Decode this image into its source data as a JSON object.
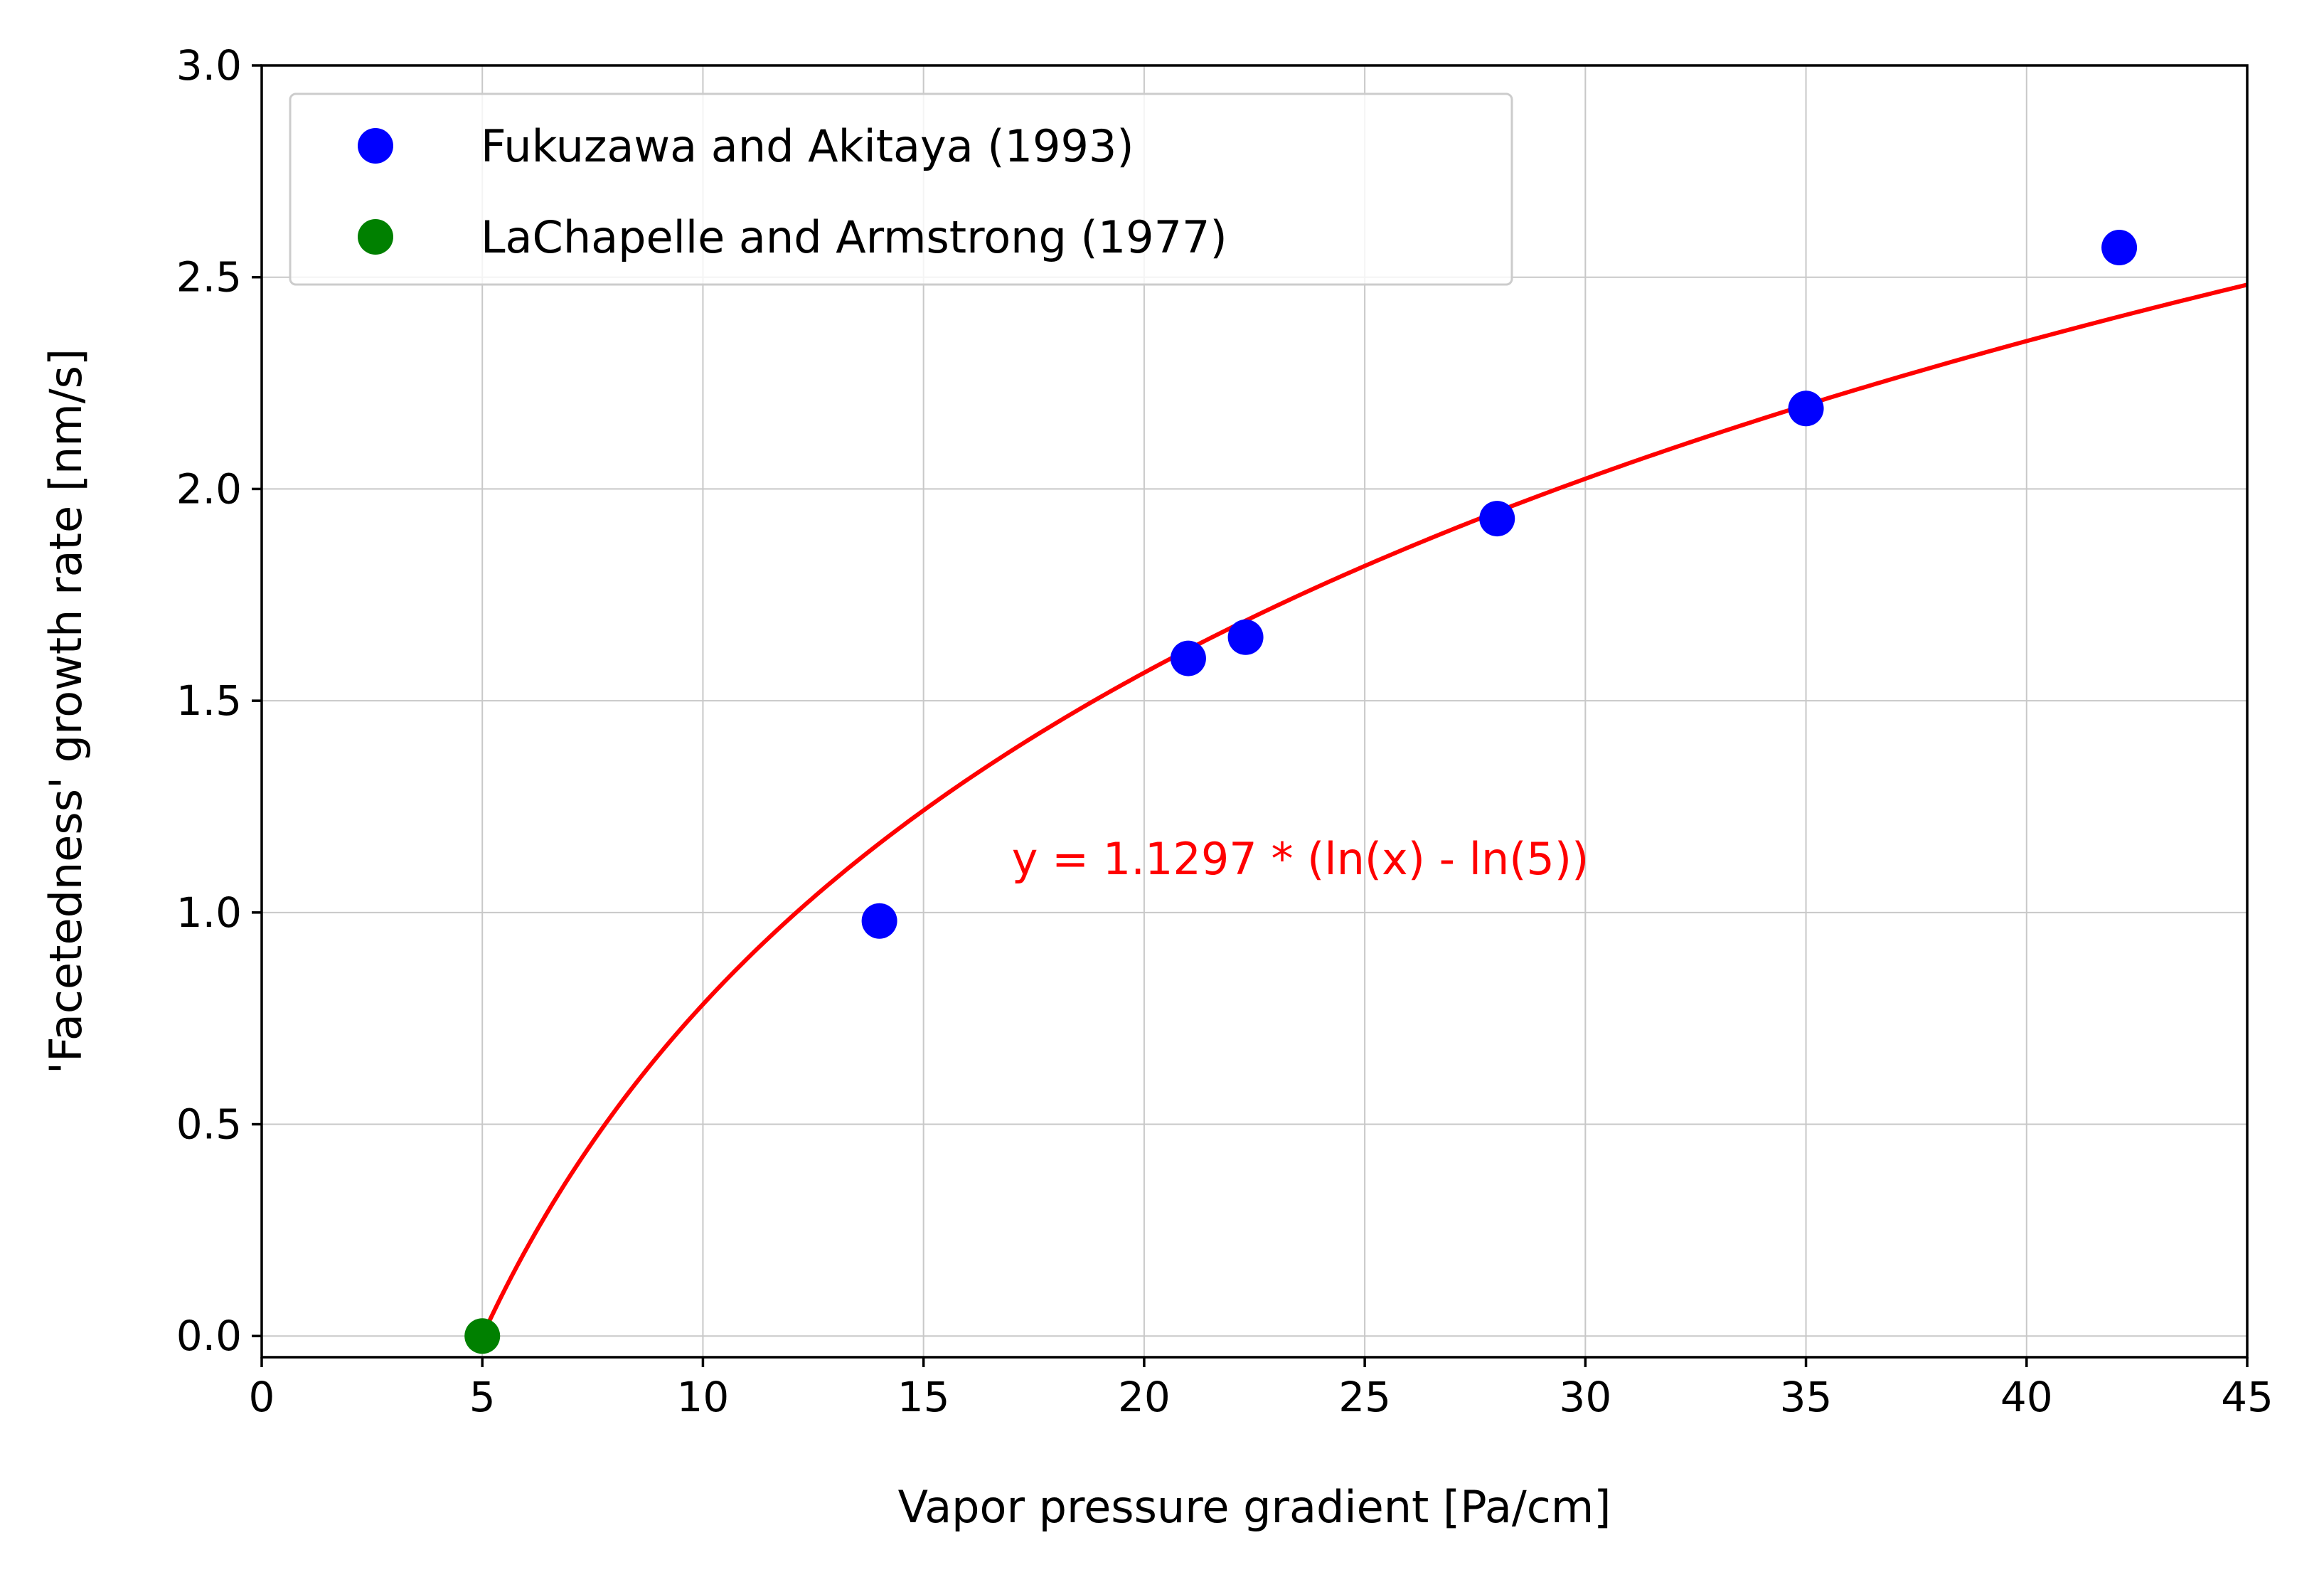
{
  "chart_data": {
    "type": "scatter",
    "title": "",
    "xlabel": "Vapor pressure gradient [Pa/cm]",
    "ylabel": "'Facetedness' growth rate [nm/s]",
    "xlim": [
      0,
      45
    ],
    "ylim": [
      -0.05,
      3.0
    ],
    "xticks": [
      0,
      5,
      10,
      15,
      20,
      25,
      30,
      35,
      40,
      45
    ],
    "yticks": [
      0.0,
      0.5,
      1.0,
      1.5,
      2.0,
      2.5,
      3.0
    ],
    "xtick_labels": [
      "0",
      "5",
      "10",
      "15",
      "20",
      "25",
      "30",
      "35",
      "40",
      "45"
    ],
    "ytick_labels": [
      "0.0",
      "0.5",
      "1.0",
      "1.5",
      "2.0",
      "2.5",
      "3.0"
    ],
    "grid": true,
    "legend_position": "top-left",
    "series": [
      {
        "name": "Fukuzawa and Akitaya (1993)",
        "kind": "scatter",
        "color": "#0000ff",
        "x": [
          14.0,
          21.0,
          22.3,
          28.0,
          35.0,
          42.1
        ],
        "y": [
          0.98,
          1.6,
          1.65,
          1.93,
          2.19,
          2.57
        ]
      },
      {
        "name": "LaChapelle and Armstrong (1977)",
        "kind": "scatter",
        "color": "#008000",
        "x": [
          5.0
        ],
        "y": [
          0.0
        ]
      }
    ],
    "fit": {
      "kind": "line",
      "color": "#ff0000",
      "coefficient": 1.1297,
      "x0": 5,
      "x_range": [
        5,
        45
      ]
    },
    "annotations": [
      {
        "text": "y = 1.1297 * (ln(x) - ln(5))",
        "x": 17.0,
        "y": 1.09,
        "color": "#ff0000"
      }
    ]
  }
}
